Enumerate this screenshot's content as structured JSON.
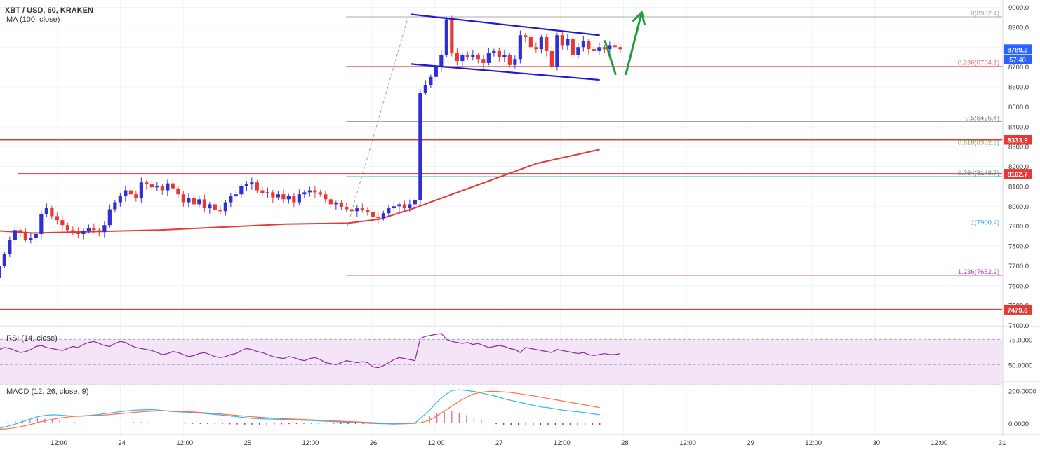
{
  "header": {
    "symbol": "XBT / USD, 60, KRAKEN",
    "indicator": "MA (100, close)"
  },
  "rsi_panel": {
    "label": "RSI (14, close)",
    "ticks": [
      "75.0000",
      "50.0000"
    ]
  },
  "macd_panel": {
    "label": "MACD (12, 26, close, 9)",
    "ticks": [
      "200.0000",
      "0.0000"
    ]
  },
  "price_axis": {
    "ticks": [
      {
        "value": 9000,
        "label": "9000.0"
      },
      {
        "value": 8900,
        "label": "8900.0"
      },
      {
        "value": 8800,
        "label": "8800.0"
      },
      {
        "value": 8700,
        "label": "8700.0"
      },
      {
        "value": 8600,
        "label": "8600.0"
      },
      {
        "value": 8500,
        "label": "8500.0"
      },
      {
        "value": 8400,
        "label": "8400.0"
      },
      {
        "value": 8300,
        "label": "8300.0"
      },
      {
        "value": 8200,
        "label": "8200.0"
      },
      {
        "value": 8100,
        "label": "8100.0"
      },
      {
        "value": 8000,
        "label": "8000.0"
      },
      {
        "value": 7900,
        "label": "7900.0"
      },
      {
        "value": 7800,
        "label": "7800.0"
      },
      {
        "value": 7700,
        "label": "7700.0"
      },
      {
        "value": 7600,
        "label": "7600.0"
      },
      {
        "value": 7500,
        "label": "7500.0"
      },
      {
        "value": 7400,
        "label": "7400.0"
      }
    ],
    "badges": [
      {
        "value": 8789.2,
        "label": "8789.2",
        "color": "#2962ff"
      },
      {
        "value": 8333.9,
        "label": "8333.9",
        "color": "#e53935"
      },
      {
        "value": 8162.7,
        "label": "8162.7",
        "color": "#e53935"
      },
      {
        "value": 7479.6,
        "label": "7479.6",
        "color": "#e53935"
      }
    ],
    "countdown": "57:40"
  },
  "time_axis": [
    "12:00",
    "24",
    "12:00",
    "25",
    "12:00",
    "26",
    "12:00",
    "27",
    "12:00",
    "28",
    "12:00",
    "29",
    "12:00",
    "30",
    "12:00",
    "31"
  ],
  "fibonacci": [
    {
      "level": "0",
      "value": 8952.4,
      "label": "0(8952.4)",
      "color": "#9e9e9e"
    },
    {
      "level": "0.236",
      "value": 8704.1,
      "label": "0.236(8704.1)",
      "color": "#e57373"
    },
    {
      "level": "0.5",
      "value": 8426.4,
      "label": "0.5(8426.4)",
      "color": "#757575"
    },
    {
      "level": "0.618",
      "value": 8302.3,
      "label": "0.618(8302.3)",
      "color": "#4caf50"
    },
    {
      "level": "0.764",
      "value": 8148.7,
      "label": "0.764(8148.7)",
      "color": "#26a69a"
    },
    {
      "level": "1",
      "value": 7900.4,
      "label": "1(7900.4)",
      "color": "#42a5f5"
    },
    {
      "level": "1.236",
      "value": 7652.2,
      "label": "1.236(7652.2)",
      "color": "#ab47bc"
    }
  ],
  "horizontal_lines": [
    {
      "value": 8333.9,
      "color": "#e53935",
      "extent": "full"
    },
    {
      "value": 8162.7,
      "color": "#e53935",
      "extent": "from 23 Nov 21:00"
    },
    {
      "value": 7479.6,
      "color": "#e53935",
      "extent": "full"
    }
  ],
  "channel": {
    "color": "#1a1adb",
    "upper": {
      "from": [
        "27 Nov 00:00",
        8965
      ],
      "to": [
        "28 Nov 12:00",
        8860
      ]
    },
    "lower": {
      "from": [
        "27 Nov 00:00",
        8715
      ],
      "to": [
        "28 Nov 12:00",
        8635
      ]
    }
  },
  "forecast_arrows": {
    "color": "#1e9e3a",
    "down": {
      "from": [
        "28 Nov 13:00",
        8830
      ],
      "to": [
        "28 Nov 15:00",
        8665
      ]
    },
    "up": {
      "from": [
        "28 Nov 17:00",
        8665
      ],
      "to": [
        "28 Nov 20:00",
        8975
      ]
    }
  },
  "chart_data": {
    "type": "candlestick",
    "title": "XBT / USD, 60, KRAKEN",
    "interval": "60 minutes",
    "x_range": [
      "23 Nov 06:00",
      "31 Nov 00:00"
    ],
    "ylim": [
      7400,
      9000
    ],
    "colors": {
      "up": "#2f2fd6",
      "down": "#e53935",
      "ma": "#e53935",
      "rsi": "#8e24aa",
      "macd": "#29b6f6",
      "signal": "#ff7043",
      "hist_pos": "#e57399",
      "hist_neg": "#c2185b",
      "rsi_band": "#f3e5f5"
    },
    "candles": [
      7660,
      7690,
      7640,
      7670,
      7650,
      7600,
      7580,
      7560,
      7575,
      7610,
      7640,
      7700,
      7760,
      7830,
      7880,
      7870,
      7830,
      7840,
      7860,
      7960,
      7990,
      7950,
      7930,
      7905,
      7880,
      7870,
      7860,
      7875,
      7890,
      7880,
      7870,
      7905,
      7985,
      8020,
      8050,
      8080,
      8060,
      8040,
      8120,
      8110,
      8095,
      8100,
      8080,
      8115,
      8090,
      8060,
      8020,
      8040,
      8010,
      8035,
      7990,
      8010,
      7980,
      7975,
      8020,
      8050,
      8060,
      8100,
      8110,
      8120,
      8080,
      8065,
      8070,
      8045,
      8060,
      8035,
      8050,
      8020,
      8060,
      8070,
      8080,
      8070,
      8060,
      8035,
      8010,
      8015,
      7995,
      7985,
      7975,
      7990,
      7980,
      7970,
      7945,
      7940,
      7965,
      7990,
      8000,
      8010,
      7990,
      8010,
      8030,
      8570,
      8610,
      8650,
      8700,
      8760,
      8940,
      8770,
      8730,
      8760,
      8750,
      8760,
      8740,
      8720,
      8770,
      8780,
      8750,
      8760,
      8710,
      8740,
      8860,
      8850,
      8800,
      8790,
      8850,
      8780,
      8700,
      8860,
      8810,
      8840,
      8760,
      8800,
      8830,
      8790,
      8780,
      8800,
      8790,
      8810,
      8800,
      8789.2
    ],
    "candle_start": "23 Nov 06:00",
    "moving_average": {
      "name": "MA (100, close)",
      "points": [
        [
          "23 Nov 06:00",
          7910
        ],
        [
          "23 Nov 12:00",
          7885
        ],
        [
          "24 Nov 00:00",
          7865
        ],
        [
          "25 Nov 00:00",
          7880
        ],
        [
          "26 Nov 00:00",
          7910
        ],
        [
          "26 Nov 12:00",
          7915
        ],
        [
          "26 Nov 18:00",
          7935
        ],
        [
          "27 Nov 00:00",
          7985
        ],
        [
          "27 Nov 12:00",
          8100
        ],
        [
          "28 Nov 00:00",
          8215
        ],
        [
          "28 Nov 12:00",
          8285
        ]
      ]
    },
    "rsi": {
      "ylim": [
        35,
        85
      ],
      "values": [
        52,
        50,
        48,
        47,
        46,
        49,
        53,
        54,
        55,
        58,
        63,
        65,
        67,
        66,
        64,
        62,
        63,
        65,
        68,
        69,
        67,
        66,
        65,
        64,
        66,
        68,
        67,
        70,
        72,
        73,
        71,
        69,
        68,
        71,
        73,
        72,
        69,
        67,
        66,
        65,
        64,
        62,
        60,
        61,
        63,
        62,
        60,
        58,
        59,
        61,
        62,
        60,
        58,
        57,
        58,
        60,
        61,
        64,
        66,
        65,
        63,
        62,
        60,
        58,
        57,
        56,
        58,
        57,
        55,
        54,
        56,
        57,
        55,
        52,
        51,
        50,
        52,
        54,
        53,
        52,
        53,
        52,
        48,
        47,
        49,
        52,
        55,
        57,
        56,
        55,
        54,
        76,
        78,
        79,
        80,
        81,
        75,
        73,
        72,
        71,
        72,
        70,
        71,
        69,
        67,
        68,
        69,
        68,
        66,
        65,
        62,
        67,
        66,
        65,
        64,
        63,
        62,
        65,
        64,
        63,
        62,
        61,
        62,
        60,
        59,
        60,
        61,
        60,
        60,
        61
      ]
    },
    "macd": {
      "ylim": [
        -60,
        240
      ],
      "macd_line": [
        -40,
        -42,
        -45,
        -48,
        -50,
        -49,
        -46,
        -40,
        -30,
        -18,
        -5,
        10,
        25,
        40,
        48,
        52,
        50,
        46,
        44,
        45,
        48,
        52,
        58,
        64,
        70,
        75,
        80,
        82,
        83,
        82,
        78,
        72,
        70,
        68,
        66,
        62,
        58,
        54,
        50,
        45,
        40,
        35,
        30,
        28,
        26,
        25,
        24,
        22,
        20,
        18,
        17,
        15,
        12,
        10,
        8,
        6,
        4,
        2,
        0,
        -2,
        -3,
        -5,
        -4,
        -2,
        0,
        40,
        80,
        130,
        170,
        200,
        205,
        200,
        195,
        185,
        175,
        165,
        150,
        140,
        130,
        120,
        110,
        100,
        95,
        88,
        80,
        75,
        70,
        65,
        58,
        52
      ],
      "signal_line": [
        -10,
        -15,
        -22,
        -28,
        -34,
        -38,
        -40,
        -40,
        -37,
        -33,
        -27,
        -18,
        -8,
        4,
        15,
        24,
        32,
        38,
        42,
        44,
        46,
        48,
        50,
        54,
        58,
        62,
        66,
        70,
        73,
        75,
        76,
        75,
        73,
        71,
        69,
        66,
        63,
        60,
        56,
        52,
        48,
        44,
        40,
        37,
        34,
        31,
        29,
        27,
        25,
        23,
        21,
        19,
        17,
        15,
        13,
        11,
        9,
        7,
        5,
        3,
        1,
        0,
        -1,
        -1,
        0,
        5,
        20,
        45,
        75,
        105,
        135,
        160,
        180,
        190,
        195,
        195,
        192,
        188,
        182,
        175,
        168,
        160,
        152,
        144,
        136,
        128,
        120,
        112,
        104,
        96
      ],
      "histogram": [
        -12,
        -14,
        -15,
        -16,
        -15,
        -12,
        -8,
        -4,
        2,
        8,
        14,
        20,
        26,
        30,
        28,
        24,
        18,
        12,
        8,
        5,
        3,
        2,
        3,
        4,
        6,
        7,
        8,
        7,
        6,
        5,
        3,
        1,
        -1,
        -2,
        -3,
        -4,
        -4,
        -5,
        -5,
        -6,
        -7,
        -8,
        -8,
        -8,
        -8,
        -7,
        -6,
        -5,
        -4,
        -3,
        -3,
        -3,
        -4,
        -4,
        -4,
        -5,
        -5,
        -4,
        -4,
        -4,
        -3,
        -2,
        -2,
        -1,
        0,
        25,
        45,
        60,
        70,
        75,
        65,
        50,
        35,
        20,
        5,
        -5,
        -8,
        -10,
        -10,
        -10,
        -10,
        -10,
        -10,
        -10,
        -10,
        -10,
        -10,
        -10,
        -10,
        -10
      ]
    }
  }
}
